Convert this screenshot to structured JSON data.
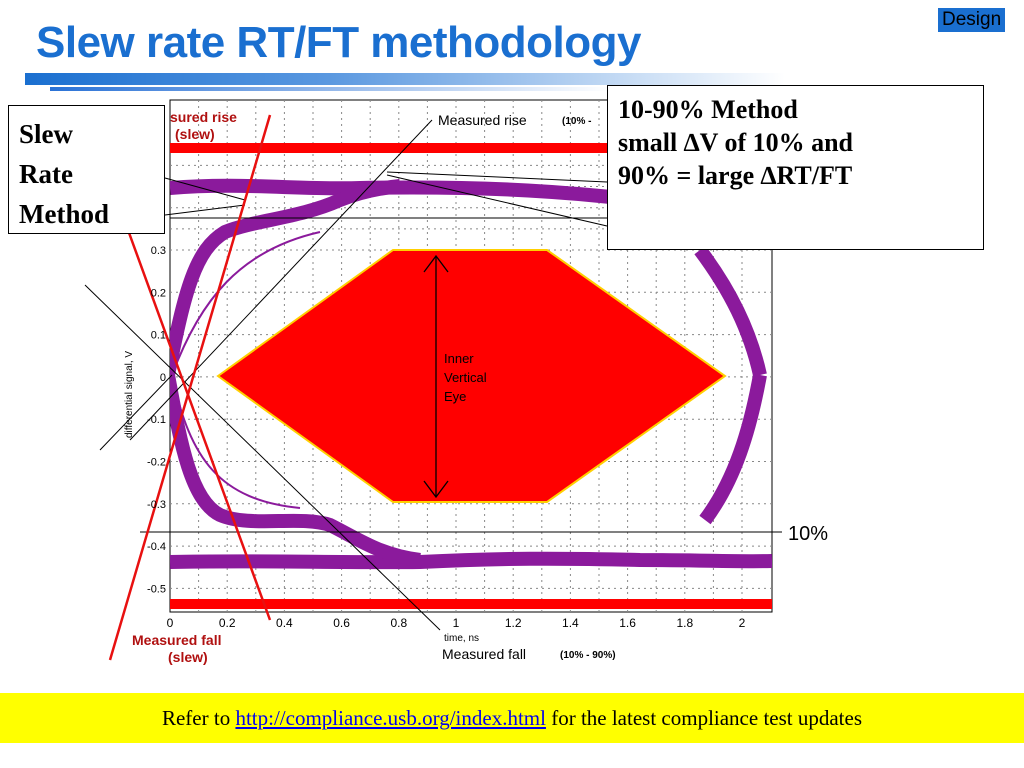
{
  "header": {
    "title": "Slew rate RT/FT methodology",
    "tag": "Design"
  },
  "slew_box": {
    "line1": "Slew",
    "line2": "Rate",
    "line3": "Method"
  },
  "method_box": {
    "line1": "10-90% Method",
    "line2": "small ∆V of 10% and",
    "line3": "90% = large ∆RT/FT"
  },
  "plot": {
    "ylabel": "differential signal, V",
    "xlabel": "time, ns",
    "yticks": [
      "0.3",
      "0.2",
      "0.1",
      "0",
      "-0.1",
      "-0.2",
      "-0.3",
      "-0.4",
      "-0.5"
    ],
    "xticks": [
      "0",
      "0.2",
      "0.4",
      "0.6",
      "0.8",
      "1",
      "1.2",
      "1.4",
      "1.6",
      "1.8",
      "2"
    ],
    "measured_rise_label": "Measured rise",
    "measured_rise_range": "(10% -",
    "measured_rise_slew_l1": "sured rise",
    "measured_rise_slew_l2": "(slew)",
    "measured_fall_slew_l1": "Measured fall",
    "measured_fall_slew_l2": "(slew)",
    "measured_fall_label": "Measured fall",
    "measured_fall_range": "(10% - 90%)",
    "eye_label_l1": "Inner",
    "eye_label_l2": "Vertical",
    "eye_label_l3": "Eye",
    "level_label": "10%",
    "colors": {
      "trace": "#8b1a9c",
      "eye": "#ff0000",
      "eye_border": "#ffd000",
      "slew_line": "#e81010"
    }
  },
  "footer": {
    "prefix": "Refer to ",
    "link": "http://compliance.usb.org/index.html",
    "suffix": " for the latest compliance test updates"
  }
}
